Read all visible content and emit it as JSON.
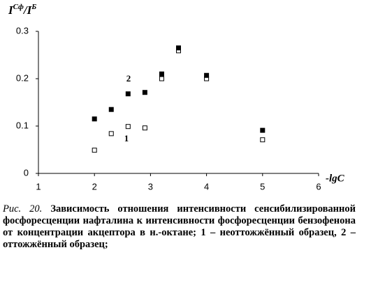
{
  "chart_data": {
    "type": "scatter",
    "ylabel": [
      "I",
      "Сф",
      "/I",
      "Б"
    ],
    "xlabel": "-lgC",
    "xlim": [
      1,
      6
    ],
    "xticks": [
      1,
      2,
      3,
      4,
      5,
      6
    ],
    "ylim": [
      0,
      0.3
    ],
    "yticks": [
      0,
      0.1,
      0.2,
      0.3
    ],
    "grid": false,
    "series": [
      {
        "name": "1",
        "color": "#000000",
        "marker": "open",
        "x": [
          2,
          2.3,
          2.6,
          2.9,
          3.2,
          3.5,
          4,
          5
        ],
        "values": [
          0.049,
          0.084,
          0.099,
          0.096,
          0.2,
          0.259,
          0.2,
          0.071
        ]
      },
      {
        "name": "2",
        "color": "#000000",
        "marker": "filled",
        "x": [
          2,
          2.3,
          2.6,
          2.9,
          3.2,
          3.5,
          4,
          5
        ],
        "values": [
          0.115,
          0.135,
          0.168,
          0.171,
          0.21,
          0.265,
          0.207,
          0.091
        ]
      }
    ]
  },
  "caption": {
    "label": "Рис. 20.",
    "text": "Зависимость отношения интенсивности сенсибилизированной фосфоресценции нафталина к интенсивности фосфоресценции бензофенона от концентрации акцептора в н.-октане; 1 – неоттожжённый образец, 2 – оттожжённый образец;"
  }
}
